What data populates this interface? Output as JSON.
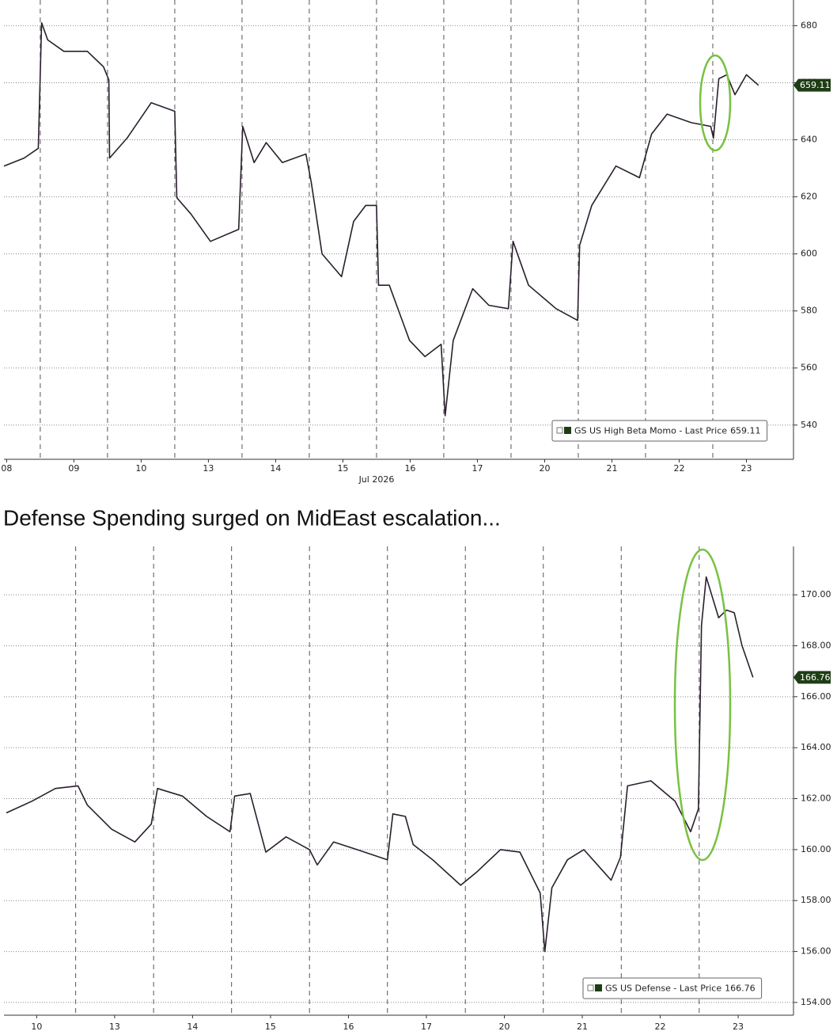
{
  "heading": "Defense Spending surged on MidEast escalation...",
  "chart_data": [
    {
      "type": "line",
      "x_label": "Jul 2026",
      "xlim": [
        -0.04,
        11.7
      ],
      "xticks": [
        {
          "value": 0,
          "label": "08"
        },
        {
          "value": 1,
          "label": "09"
        },
        {
          "value": 2,
          "label": "10"
        },
        {
          "value": 3,
          "label": "13"
        },
        {
          "value": 4,
          "label": "14"
        },
        {
          "value": 5,
          "label": "15"
        },
        {
          "value": 6,
          "label": "16"
        },
        {
          "value": 7,
          "label": "17"
        },
        {
          "value": 8,
          "label": "20"
        },
        {
          "value": 9,
          "label": "21"
        },
        {
          "value": 10,
          "label": "22"
        },
        {
          "value": 11,
          "label": "23"
        }
      ],
      "ylim": [
        528,
        689
      ],
      "yticks": [
        540,
        560,
        580,
        600,
        620,
        640,
        660,
        680
      ],
      "grid": true,
      "last_price": 659.11,
      "series": [
        {
          "name": "GS US High Beta Momo - Last Price",
          "color": "#2a1f2d",
          "x": [
            -0.04,
            0.26,
            0.47,
            0.52,
            0.61,
            0.85,
            1.2,
            1.44,
            1.52,
            1.53,
            1.79,
            2.15,
            2.5,
            2.53,
            2.74,
            3.03,
            3.45,
            3.51,
            3.68,
            3.86,
            4.1,
            4.45,
            4.53,
            4.69,
            4.98,
            5.16,
            5.34,
            5.5,
            5.53,
            5.69,
            5.99,
            6.22,
            6.46,
            6.52,
            6.64,
            6.93,
            7.17,
            7.46,
            7.53,
            7.76,
            8.17,
            8.49,
            8.52,
            8.7,
            9.06,
            9.41,
            9.59,
            9.82,
            10.18,
            10.47,
            10.51,
            10.59,
            10.71,
            10.83,
            11.0,
            11.18
          ],
          "values": [
            630.8,
            633.6,
            637,
            681,
            675,
            671,
            671,
            665.6,
            661,
            633.6,
            640.6,
            653,
            650,
            619.7,
            614,
            604.4,
            608.6,
            644.7,
            632,
            639,
            632,
            635,
            625,
            600,
            592,
            611.4,
            617,
            617,
            589,
            589,
            569.7,
            564,
            568.3,
            543.3,
            569.7,
            587.8,
            582,
            580.8,
            604.4,
            589,
            580.8,
            576.7,
            603,
            617,
            630.8,
            626.7,
            642,
            649,
            646,
            644.7,
            640.6,
            661.4,
            662.8,
            655.8,
            662.8,
            659.11
          ]
        }
      ]
    },
    {
      "type": "line",
      "xlim": [
        -0.42,
        9.71
      ],
      "xticks": [
        {
          "value": 0,
          "label": "10"
        },
        {
          "value": 1,
          "label": "13"
        },
        {
          "value": 2,
          "label": "14"
        },
        {
          "value": 3,
          "label": "15"
        },
        {
          "value": 4,
          "label": "16"
        },
        {
          "value": 5,
          "label": "17"
        },
        {
          "value": 6,
          "label": "20"
        },
        {
          "value": 7,
          "label": "21"
        },
        {
          "value": 8,
          "label": "22"
        },
        {
          "value": 9,
          "label": "23"
        }
      ],
      "ylim": [
        153.5,
        171.9
      ],
      "yticks": [
        {
          "value": 154,
          "label": "154.00"
        },
        {
          "value": 156,
          "label": "156.00"
        },
        {
          "value": 158,
          "label": "158.00"
        },
        {
          "value": 160,
          "label": "160.00"
        },
        {
          "value": 162,
          "label": "162.00"
        },
        {
          "value": 164,
          "label": "164.00"
        },
        {
          "value": 166,
          "label": "166.00"
        },
        {
          "value": 168,
          "label": "168.00"
        },
        {
          "value": 170,
          "label": "170.00"
        }
      ],
      "grid": true,
      "last_price": 166.76,
      "series": [
        {
          "name": "GS US Defense - Last Price",
          "color": "#2a1f2d",
          "x": [
            -0.39,
            -0.06,
            0.24,
            0.53,
            0.65,
            0.96,
            1.26,
            1.47,
            1.55,
            1.87,
            2.18,
            2.48,
            2.54,
            2.74,
            2.94,
            3.2,
            3.5,
            3.6,
            3.81,
            4.11,
            4.5,
            4.57,
            4.73,
            4.83,
            5.08,
            5.44,
            5.64,
            5.95,
            6.2,
            6.46,
            6.52,
            6.61,
            6.81,
            7.02,
            7.37,
            7.49,
            7.58,
            7.88,
            8.19,
            8.39,
            8.49,
            8.53,
            8.59,
            8.75,
            8.85,
            8.95,
            9.05,
            9.19
          ],
          "values": [
            161.44,
            161.9,
            162.4,
            162.5,
            161.75,
            160.8,
            160.3,
            161.0,
            162.4,
            162.1,
            161.3,
            160.7,
            162.1,
            162.2,
            159.9,
            160.5,
            160.0,
            159.4,
            160.3,
            160.0,
            159.6,
            161.4,
            161.3,
            160.2,
            159.6,
            158.6,
            159.1,
            160.0,
            159.9,
            158.3,
            156.0,
            158.5,
            159.6,
            160.0,
            158.8,
            159.7,
            162.5,
            162.7,
            161.9,
            160.7,
            161.6,
            168.8,
            170.7,
            169.1,
            169.4,
            169.3,
            168.0,
            166.76
          ]
        }
      ]
    }
  ]
}
